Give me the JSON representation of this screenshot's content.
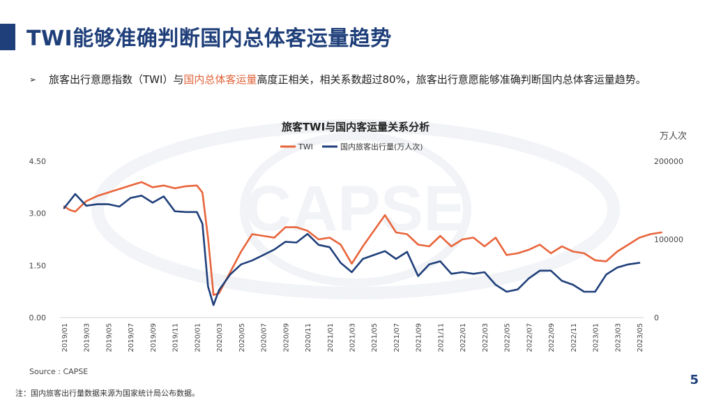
{
  "header": {
    "title": "TWI能够准确判断国内总体客运量趋势"
  },
  "bullet": {
    "marker": "➢",
    "text_before": "旅客出行意愿指数（TWI）与",
    "text_highlight": "国内总体客运量",
    "text_after": "高度正相关，相关系数超过80%，旅客出行意愿能够准确判断国内总体客运量趋势。"
  },
  "footer": {
    "source": "Source : CAPSE",
    "note": "注：国内旅客出行量数据来源为国家统计局公布数据。",
    "page_number": "5"
  },
  "watermark": {
    "text": "CAPSE"
  },
  "colors": {
    "title": "#1f3f7a",
    "twi": "#e8643a",
    "volume": "#1f3f7a",
    "highlight": "#e0643b"
  },
  "chart_data": {
    "type": "line",
    "title": "旅客TWI与国内客运量关系分析",
    "right_axis_unit": "万人次",
    "legend_position": "top-center",
    "grid": false,
    "x_ticks": [
      "2019/01",
      "2019/03",
      "2019/05",
      "2019/07",
      "2019/09",
      "2019/11",
      "2020/01",
      "2020/03",
      "2020/05",
      "2020/07",
      "2020/09",
      "2020/11",
      "2021/01",
      "2021/03",
      "2021/05",
      "2021/07",
      "2021/09",
      "2021/11",
      "2022/01",
      "2022/03",
      "2022/05",
      "2022/07",
      "2022/09",
      "2022/11",
      "2023/01",
      "2023/03",
      "2023/05"
    ],
    "y_left": {
      "min": 0,
      "max": 4.5,
      "ticks": [
        "0.00",
        "1.50",
        "3.00",
        "4.50"
      ]
    },
    "y_right": {
      "min": 0,
      "max": 200000,
      "ticks": [
        "0",
        "100000",
        "200000"
      ]
    },
    "series": [
      {
        "name": "TWI",
        "axis": "left",
        "points": [
          [
            0,
            3.2
          ],
          [
            0.5,
            3.1
          ],
          [
            1,
            3.05
          ],
          [
            1.5,
            3.2
          ],
          [
            2,
            3.35
          ],
          [
            3,
            3.5
          ],
          [
            4,
            3.6
          ],
          [
            5,
            3.7
          ],
          [
            6,
            3.8
          ],
          [
            7,
            3.9
          ],
          [
            8,
            3.75
          ],
          [
            9,
            3.8
          ],
          [
            10,
            3.72
          ],
          [
            11,
            3.78
          ],
          [
            12,
            3.8
          ],
          [
            12.5,
            3.6
          ],
          [
            13,
            2.3
          ],
          [
            13.5,
            0.65
          ],
          [
            14,
            0.7
          ],
          [
            15,
            1.3
          ],
          [
            16,
            1.9
          ],
          [
            17,
            2.4
          ],
          [
            18,
            2.35
          ],
          [
            19,
            2.3
          ],
          [
            20,
            2.6
          ],
          [
            21,
            2.6
          ],
          [
            22,
            2.5
          ],
          [
            23,
            2.25
          ],
          [
            24,
            2.3
          ],
          [
            25,
            2.1
          ],
          [
            26,
            1.55
          ],
          [
            27,
            2.05
          ],
          [
            28,
            2.5
          ],
          [
            29,
            2.95
          ],
          [
            30,
            2.45
          ],
          [
            31,
            2.4
          ],
          [
            32,
            2.1
          ],
          [
            33,
            2.05
          ],
          [
            34,
            2.35
          ],
          [
            35,
            2.05
          ],
          [
            36,
            2.25
          ],
          [
            37,
            2.3
          ],
          [
            38,
            2.05
          ],
          [
            39,
            2.3
          ],
          [
            40,
            1.8
          ],
          [
            41,
            1.85
          ],
          [
            42,
            1.95
          ],
          [
            43,
            2.1
          ],
          [
            44,
            1.85
          ],
          [
            45,
            2.05
          ],
          [
            46,
            1.9
          ],
          [
            47,
            1.85
          ],
          [
            48,
            1.65
          ],
          [
            49,
            1.62
          ],
          [
            50,
            1.9
          ],
          [
            51,
            2.1
          ],
          [
            52,
            2.3
          ],
          [
            53,
            2.4
          ],
          [
            54,
            2.45
          ]
        ]
      },
      {
        "name": "国内旅客出行量(万人次)",
        "axis": "right",
        "points": [
          [
            0,
            140000
          ],
          [
            1,
            158000
          ],
          [
            2,
            143000
          ],
          [
            3,
            145000
          ],
          [
            4,
            145000
          ],
          [
            5,
            142000
          ],
          [
            6,
            153000
          ],
          [
            7,
            156000
          ],
          [
            8,
            147000
          ],
          [
            9,
            155000
          ],
          [
            10,
            136000
          ],
          [
            11,
            135000
          ],
          [
            12,
            135000
          ],
          [
            12.5,
            120000
          ],
          [
            13,
            40000
          ],
          [
            13.5,
            16000
          ],
          [
            14,
            35000
          ],
          [
            15,
            55000
          ],
          [
            16,
            68000
          ],
          [
            17,
            73000
          ],
          [
            18,
            80000
          ],
          [
            19,
            87000
          ],
          [
            20,
            97000
          ],
          [
            21,
            96000
          ],
          [
            22,
            107000
          ],
          [
            23,
            93000
          ],
          [
            24,
            90000
          ],
          [
            25,
            70000
          ],
          [
            26,
            58000
          ],
          [
            27,
            75000
          ],
          [
            28,
            80000
          ],
          [
            29,
            85000
          ],
          [
            30,
            75000
          ],
          [
            31,
            84000
          ],
          [
            32,
            53000
          ],
          [
            33,
            68000
          ],
          [
            34,
            72000
          ],
          [
            35,
            56000
          ],
          [
            36,
            58000
          ],
          [
            37,
            56000
          ],
          [
            38,
            58000
          ],
          [
            39,
            42000
          ],
          [
            40,
            33000
          ],
          [
            41,
            36000
          ],
          [
            42,
            50000
          ],
          [
            43,
            60000
          ],
          [
            44,
            60000
          ],
          [
            45,
            47000
          ],
          [
            46,
            42000
          ],
          [
            47,
            33000
          ],
          [
            48,
            33000
          ],
          [
            49,
            55000
          ],
          [
            50,
            64000
          ],
          [
            51,
            68000
          ],
          [
            52,
            70000
          ]
        ]
      }
    ]
  }
}
